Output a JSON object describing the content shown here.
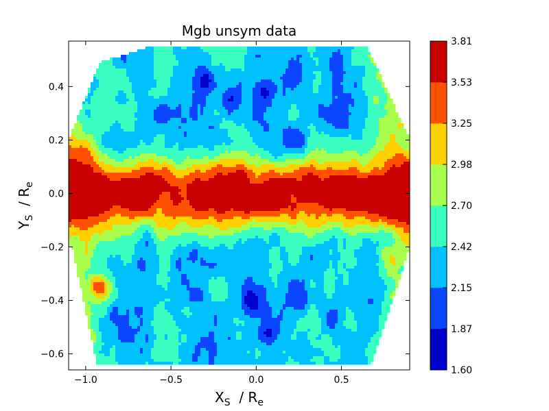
{
  "chart_data": {
    "type": "heatmap",
    "title": "Mgb unsym data",
    "xlabel": {
      "main": "X",
      "sub": "S",
      "sep": "  / R",
      "sub2": "e"
    },
    "ylabel": {
      "main": "Y",
      "sub": "S",
      "sep": "  / R",
      "sub2": "e"
    },
    "xlim": [
      -1.1,
      0.9
    ],
    "ylim": [
      -0.66,
      0.57
    ],
    "xticks": [
      -1.0,
      -0.5,
      0.0,
      0.5
    ],
    "xtick_labels": [
      "−1.0",
      "−0.5",
      "0.0",
      "0.5"
    ],
    "yticks": [
      0.4,
      0.2,
      0.0,
      -0.2,
      -0.4,
      -0.6
    ],
    "ytick_labels": [
      "0.4",
      "0.2",
      "0.0",
      "−0.2",
      "−0.4",
      "−0.6"
    ],
    "colorbar": {
      "levels": [
        1.6,
        1.87,
        2.15,
        2.42,
        2.7,
        2.98,
        3.25,
        3.53,
        3.81
      ],
      "labels": [
        "1.60",
        "1.87",
        "2.15",
        "2.42",
        "2.70",
        "2.98",
        "3.25",
        "3.53",
        "3.81"
      ],
      "colors": [
        "#0000cd",
        "#0a46ff",
        "#00c0ff",
        "#3affc0",
        "#a8ff4e",
        "#ffd100",
        "#ff5200",
        "#c80000"
      ]
    },
    "grid": false,
    "features": {
      "ridge_value": 3.6,
      "ridge_center_y": 0.0,
      "upper_band_value": 2.3,
      "lower_band_value": 2.3,
      "blue_spots": [
        {
          "x": -0.3,
          "y": 0.42,
          "v": 1.7
        },
        {
          "x": -0.15,
          "y": 0.35,
          "v": 1.8
        },
        {
          "x": 0.05,
          "y": 0.38,
          "v": 1.75
        },
        {
          "x": -0.55,
          "y": 0.3,
          "v": 1.95
        },
        {
          "x": 0.22,
          "y": 0.45,
          "v": 1.95
        },
        {
          "x": -0.03,
          "y": -0.4,
          "v": 1.65
        },
        {
          "x": 0.07,
          "y": -0.52,
          "v": 1.75
        },
        {
          "x": -0.35,
          "y": -0.38,
          "v": 1.95
        },
        {
          "x": 0.25,
          "y": -0.4,
          "v": 1.95
        },
        {
          "x": 0.22,
          "y": 0.2,
          "v": 1.85
        }
      ],
      "red_spots": [
        {
          "x": -0.9,
          "y": 0.02,
          "v": 3.8
        },
        {
          "x": -0.77,
          "y": 0.03,
          "v": 3.7
        },
        {
          "x": 0.35,
          "y": 0.0,
          "v": 3.6
        },
        {
          "x": 0.8,
          "y": -0.07,
          "v": 3.65
        },
        {
          "x": -0.92,
          "y": -0.35,
          "v": 3.6
        },
        {
          "x": -1.02,
          "y": 0.15,
          "v": 3.4
        }
      ]
    }
  }
}
